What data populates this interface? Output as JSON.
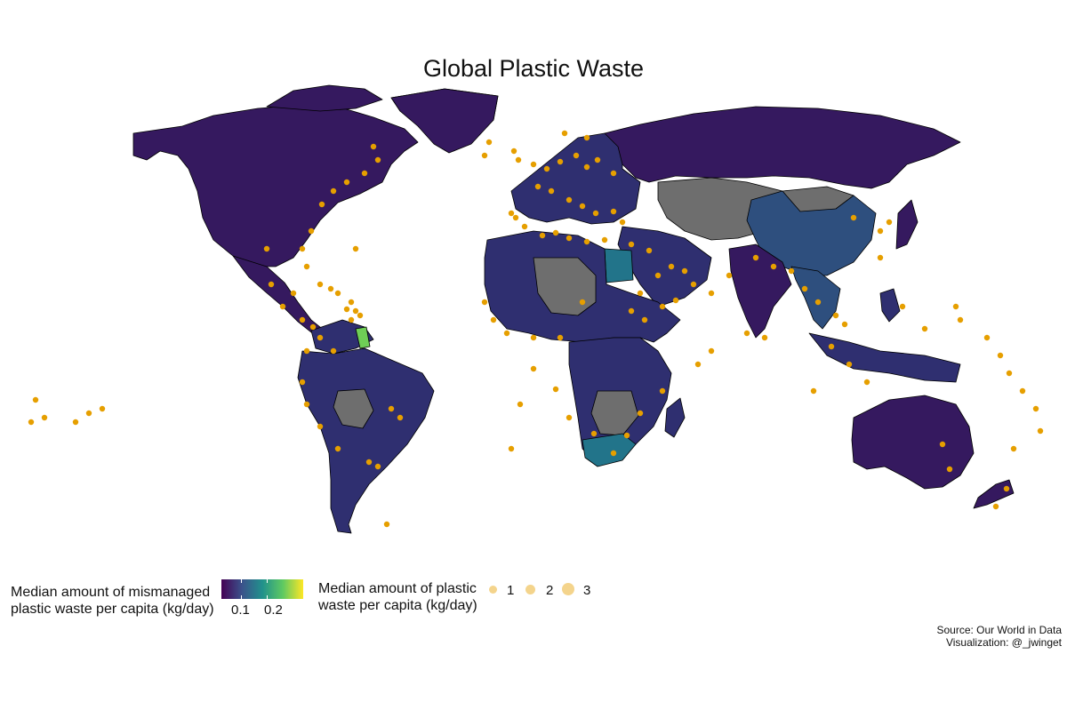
{
  "title": "Global Plastic Waste",
  "legend_fill": {
    "title_line1": "Median amount of mismanaged",
    "title_line2": "plastic waste per capita (kg/day)",
    "ticks": [
      "0.1",
      "0.2"
    ],
    "palette": [
      "#440154",
      "#3b528b",
      "#21918c",
      "#5ec962",
      "#fde725"
    ]
  },
  "legend_size": {
    "title_line1": "Median amount of plastic",
    "title_line2": "waste per capita (kg/day)",
    "values": [
      "1",
      "2",
      "3"
    ],
    "color": "#e69f00"
  },
  "caption": {
    "line1": "Source: Our World in Data",
    "line2": "Visualization: @_jwinget"
  },
  "colors": {
    "no_data": "#6e6e6e",
    "dark_purple": "#35195f",
    "purple_blue": "#2f2f70",
    "blue": "#2e4f7e",
    "teal": "#22748a",
    "green": "#6fce56",
    "point": "#e69f00"
  }
}
